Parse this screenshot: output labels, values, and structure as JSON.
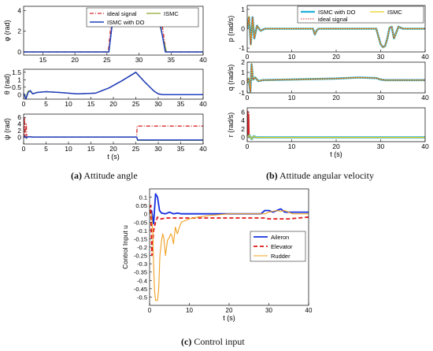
{
  "captions": {
    "a": {
      "label": "(a)",
      "text": " Attitude angle"
    },
    "b": {
      "label": "(b)",
      "text": " Attitude angular velocity"
    },
    "c": {
      "label": "(c)",
      "text": " Control input"
    }
  },
  "colors": {
    "ideal": "#d62728",
    "ismc": "#8ca832",
    "ismc_do": "#1f3fbf",
    "blue": "#1530e0",
    "red": "#e01515",
    "orange": "#f0a020",
    "cyan": "#20b0d8",
    "yellow": "#e8d020"
  },
  "chart_data": [
    {
      "id": "phi",
      "type": "line",
      "ylabel": "φ (rad)",
      "xlabel": "",
      "xlim": [
        12,
        40
      ],
      "ylim": [
        -0.3,
        4.4
      ],
      "xticks": [
        15,
        20,
        25,
        30,
        35,
        40
      ],
      "yticks": [
        0,
        2,
        4
      ],
      "legend": [
        "ideal signal",
        "ISMC",
        "ISMC with DO"
      ],
      "series": [
        {
          "name": "ideal signal",
          "style": "ideal",
          "x": [
            12,
            25.2,
            25.7,
            33.5,
            34.2,
            40
          ],
          "y": [
            0,
            0,
            3.1,
            3.1,
            0,
            0
          ]
        },
        {
          "name": "ISMC",
          "style": "ismc",
          "x": [
            12,
            25.3,
            25.9,
            33.0,
            34.3,
            40
          ],
          "y": [
            0,
            0,
            3.1,
            3.1,
            0,
            0
          ]
        },
        {
          "name": "ISMC with DO",
          "style": "ismc_do",
          "x": [
            12,
            25.3,
            25.9,
            33.2,
            34.1,
            40
          ],
          "y": [
            0,
            0,
            3.1,
            3.1,
            0,
            0
          ]
        }
      ]
    },
    {
      "id": "theta",
      "type": "line",
      "ylabel": "θ (rad)",
      "xlabel": "",
      "xlim": [
        0,
        40
      ],
      "ylim": [
        -0.3,
        1.7
      ],
      "xticks": [
        0,
        5,
        10,
        15,
        20,
        25,
        30,
        35,
        40
      ],
      "yticks": [
        0,
        0.5,
        1,
        1.5
      ],
      "series": [
        {
          "name": "ideal signal",
          "style": "ideal",
          "x": [
            0,
            0.5,
            1,
            1.5,
            2,
            3,
            5,
            8,
            12,
            16,
            19,
            22,
            25,
            27,
            29,
            30,
            31,
            35,
            40
          ],
          "y": [
            0.1,
            -0.25,
            0.2,
            0.25,
            0.05,
            0.15,
            0.2,
            0.15,
            0.05,
            0.1,
            0.45,
            0.95,
            1.5,
            0.85,
            0.25,
            0.05,
            0,
            0,
            0
          ]
        },
        {
          "name": "ISMC",
          "style": "ismc",
          "x": [
            0,
            0.5,
            1,
            1.5,
            2,
            3,
            5,
            8,
            12,
            16,
            19,
            22,
            25,
            27,
            29,
            30,
            31,
            35,
            40
          ],
          "y": [
            0.1,
            -0.2,
            0.25,
            0.2,
            0.08,
            0.15,
            0.2,
            0.15,
            0.05,
            0.1,
            0.45,
            0.95,
            1.48,
            0.83,
            0.25,
            0.05,
            0,
            0,
            0
          ]
        },
        {
          "name": "ISMC with DO",
          "style": "ismc_do",
          "x": [
            0,
            0.5,
            1,
            1.5,
            2,
            3,
            5,
            8,
            12,
            16,
            19,
            22,
            25,
            27,
            29,
            30,
            31,
            35,
            40
          ],
          "y": [
            0.1,
            -0.3,
            0.15,
            0.28,
            0.05,
            0.15,
            0.2,
            0.15,
            0.05,
            0.1,
            0.45,
            0.95,
            1.5,
            0.85,
            0.25,
            0.05,
            0,
            0,
            0
          ]
        }
      ]
    },
    {
      "id": "psi",
      "type": "line",
      "ylabel": "ψ (rad)",
      "xlabel": "t (s)",
      "xlim": [
        0,
        40
      ],
      "ylim": [
        -2,
        7
      ],
      "xticks": [
        0,
        5,
        10,
        15,
        20,
        25,
        30,
        35,
        40
      ],
      "yticks": [
        0,
        2,
        4,
        6
      ],
      "series": [
        {
          "name": "ideal signal",
          "style": "ideal",
          "x": [
            0,
            0.2,
            0.3,
            0.6,
            0.7,
            1,
            2,
            25.2,
            25.3,
            40
          ],
          "y": [
            0,
            6,
            0,
            4,
            0,
            0.2,
            0.1,
            0.1,
            3.4,
            3.4
          ]
        },
        {
          "name": "ISMC",
          "style": "ismc",
          "x": [
            0,
            0.3,
            0.6,
            1,
            2,
            25.2,
            25.4,
            40
          ],
          "y": [
            0,
            0.5,
            -0.3,
            0.2,
            0.1,
            0.1,
            -0.9,
            -0.9
          ]
        },
        {
          "name": "ISMC with DO",
          "style": "ismc_do",
          "x": [
            0,
            0.3,
            0.6,
            1,
            2,
            25.2,
            25.4,
            40
          ],
          "y": [
            0,
            0.4,
            -0.2,
            0.2,
            0.1,
            0.1,
            -0.8,
            -0.8
          ]
        }
      ]
    },
    {
      "id": "p",
      "type": "line",
      "ylabel": "p (rad/s)",
      "xlabel": "",
      "xlim": [
        0,
        40
      ],
      "ylim": [
        -1.2,
        1.2
      ],
      "xticks": [
        0,
        10,
        20,
        30,
        40
      ],
      "yticks": [
        -1,
        0,
        1
      ],
      "legend": [
        "ISMC with DO",
        "ISMC",
        "ideal signal"
      ],
      "series": [
        {
          "name": "ISMC with DO",
          "style": "ismc_do_thick",
          "x": [
            0,
            0.4,
            0.8,
            1.2,
            1.6,
            2.2,
            3,
            4,
            14.8,
            15.2,
            15.6,
            16,
            29,
            29.5,
            30,
            30.5,
            31,
            31.5,
            32,
            32.5,
            33,
            33.5,
            34,
            35,
            40
          ],
          "y": [
            0,
            0.6,
            -0.8,
            0.6,
            -0.5,
            0.15,
            -0.1,
            0,
            0,
            -0.3,
            -0.1,
            0,
            0,
            -0.4,
            -0.8,
            -0.95,
            -0.9,
            -0.5,
            0.05,
            0.1,
            -0.5,
            -0.2,
            0.1,
            0,
            0
          ]
        },
        {
          "name": "ISMC",
          "style": "ismc_yellow",
          "x": [
            0,
            0.4,
            0.8,
            1.2,
            1.6,
            2.2,
            3,
            4,
            14.8,
            15.2,
            15.6,
            16,
            29,
            29.5,
            30,
            30.5,
            31,
            31.5,
            32,
            32.5,
            33,
            33.5,
            34,
            35,
            40
          ],
          "y": [
            0,
            0.65,
            -0.85,
            0.6,
            -0.5,
            0.15,
            -0.1,
            0,
            0,
            -0.3,
            -0.1,
            0,
            0,
            -0.4,
            -0.8,
            -0.95,
            -0.9,
            -0.5,
            0.05,
            0.1,
            -0.5,
            -0.2,
            0.1,
            0,
            0
          ]
        },
        {
          "name": "ideal signal",
          "style": "ideal_dot",
          "x": [
            0,
            0.4,
            0.8,
            1.2,
            1.6,
            2.2,
            3,
            4,
            14.8,
            15.2,
            15.6,
            16,
            29,
            29.5,
            30,
            30.5,
            31,
            31.5,
            32,
            32.5,
            33,
            33.5,
            34,
            35,
            40
          ],
          "y": [
            0,
            0.6,
            -0.8,
            0.6,
            -0.5,
            0.15,
            -0.1,
            0,
            0,
            -0.3,
            -0.1,
            0,
            0,
            -0.4,
            -0.8,
            -0.95,
            -0.9,
            -0.5,
            0.05,
            0.1,
            -0.5,
            -0.2,
            0.1,
            0,
            0
          ]
        }
      ]
    },
    {
      "id": "q",
      "type": "line",
      "ylabel": "q (rad/s)",
      "xlabel": "",
      "xlim": [
        0,
        40
      ],
      "ylim": [
        -1,
        2
      ],
      "xticks": [
        0,
        10,
        20,
        30,
        40
      ],
      "yticks": [
        -1,
        0,
        1,
        2
      ],
      "series": [
        {
          "name": "ISMC with DO",
          "style": "ismc_do_thick",
          "x": [
            0,
            0.3,
            0.7,
            1,
            1.3,
            1.8,
            2.5,
            3.5,
            10,
            20,
            25,
            29,
            30,
            31,
            40
          ],
          "y": [
            0,
            0.4,
            -0.9,
            1.8,
            0.3,
            0.5,
            0.15,
            0.25,
            0.3,
            0.4,
            0.5,
            0.45,
            0.3,
            0.25,
            0.25
          ]
        },
        {
          "name": "ISMC",
          "style": "ismc_yellow",
          "x": [
            0,
            0.3,
            0.7,
            1,
            1.3,
            1.8,
            2.5,
            3.5,
            10,
            20,
            25,
            29,
            30,
            31,
            40
          ],
          "y": [
            0,
            0.45,
            -0.95,
            1.85,
            0.3,
            0.5,
            0.15,
            0.25,
            0.3,
            0.4,
            0.5,
            0.45,
            0.3,
            0.25,
            0.25
          ]
        },
        {
          "name": "ideal signal",
          "style": "ideal_dot",
          "x": [
            0,
            0.3,
            0.7,
            1,
            1.3,
            1.8,
            2.5,
            3.5,
            10,
            20,
            25,
            29,
            30,
            31,
            40
          ],
          "y": [
            0,
            0.4,
            -0.9,
            1.8,
            0.3,
            0.5,
            0.15,
            0.25,
            0.3,
            0.4,
            0.5,
            0.45,
            0.3,
            0.25,
            0.25
          ]
        }
      ]
    },
    {
      "id": "r",
      "type": "line",
      "ylabel": "r (rad/s)",
      "xlabel": "t (s)",
      "xlim": [
        0,
        40
      ],
      "ylim": [
        -1,
        7
      ],
      "xticks": [
        0,
        10,
        20,
        30,
        40
      ],
      "yticks": [
        0,
        2,
        4,
        6
      ],
      "series": [
        {
          "name": "ideal signal",
          "style": "ideal_spike",
          "x": [
            0,
            0.15,
            0.25,
            0.35,
            0.45,
            0.6,
            1,
            2,
            40
          ],
          "y": [
            0,
            6.2,
            0,
            5.5,
            0,
            0.2,
            0,
            0,
            0
          ]
        },
        {
          "name": "ISMC with DO",
          "style": "ismc_do_thick",
          "x": [
            0,
            0.5,
            1,
            1.5,
            2,
            3,
            25,
            30,
            31,
            40
          ],
          "y": [
            0,
            0.5,
            -0.4,
            0.3,
            0,
            0,
            0,
            0,
            0,
            0
          ]
        },
        {
          "name": "ISMC",
          "style": "ismc_yellow",
          "x": [
            0,
            0.5,
            1,
            1.5,
            2,
            3,
            25,
            30,
            31,
            40
          ],
          "y": [
            0,
            0.5,
            -0.4,
            0.3,
            0,
            0,
            0,
            0,
            0,
            0
          ]
        }
      ]
    },
    {
      "id": "u",
      "type": "line",
      "ylabel": "Control Input u",
      "xlabel": "t (s)",
      "xlim": [
        0,
        40
      ],
      "ylim": [
        -0.55,
        0.15
      ],
      "xticks": [
        0,
        10,
        20,
        30,
        40
      ],
      "yticks": [
        -0.5,
        -0.45,
        -0.4,
        -0.35,
        -0.3,
        -0.25,
        -0.2,
        -0.15,
        -0.1,
        -0.05,
        0,
        0.05,
        0.1
      ],
      "legend": [
        "Aileron",
        "Elevator",
        "Rudder"
      ],
      "series": [
        {
          "name": "Aileron",
          "style": "blue",
          "x": [
            0,
            0.5,
            1,
            1.5,
            2,
            2.5,
            3,
            4,
            5,
            6,
            7,
            8,
            10,
            15,
            20,
            28,
            29,
            30,
            31,
            32,
            33,
            34,
            40
          ],
          "y": [
            0,
            0.02,
            -0.06,
            0.12,
            0.1,
            0.02,
            0.005,
            0,
            0.01,
            0,
            0.005,
            0,
            0,
            0,
            0,
            0,
            0.02,
            0.02,
            0.01,
            0.02,
            0.03,
            0.01,
            0.01
          ]
        },
        {
          "name": "Elevator",
          "style": "red_dash",
          "x": [
            0,
            0.3,
            0.6,
            1,
            1.5,
            2,
            2.5,
            3,
            4,
            6,
            10,
            20,
            29,
            30,
            35,
            40
          ],
          "y": [
            0,
            0.05,
            -0.25,
            -0.1,
            -0.05,
            -0.02,
            -0.03,
            -0.03,
            -0.025,
            -0.025,
            -0.025,
            -0.025,
            -0.025,
            -0.03,
            -0.03,
            -0.02
          ]
        },
        {
          "name": "Rudder",
          "style": "orange",
          "x": [
            0,
            0.5,
            0.8,
            1,
            1.2,
            1.5,
            2,
            2.3,
            2.6,
            3,
            3.3,
            3.6,
            4,
            4.5,
            5,
            5.3,
            5.6,
            6,
            6.5,
            7,
            7.5,
            8,
            9,
            10,
            12,
            15,
            20,
            25,
            29,
            30,
            31,
            32,
            33,
            34,
            35,
            36,
            40
          ],
          "y": [
            0,
            0,
            -0.1,
            -0.3,
            -0.45,
            -0.52,
            -0.52,
            -0.45,
            -0.25,
            -0.16,
            -0.12,
            -0.15,
            -0.25,
            -0.16,
            -0.14,
            -0.12,
            -0.13,
            -0.18,
            -0.08,
            -0.12,
            -0.08,
            -0.05,
            -0.04,
            -0.03,
            -0.02,
            -0.01,
            0,
            0,
            0,
            0.01,
            0.015,
            0.02,
            0.015,
            0.02,
            0.01,
            0,
            0
          ]
        }
      ]
    }
  ]
}
